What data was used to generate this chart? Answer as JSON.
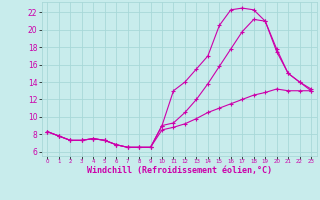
{
  "background_color": "#c8ecec",
  "grid_color": "#a8d8d8",
  "line_color": "#cc00aa",
  "marker_color": "#cc00aa",
  "xlabel": "Windchill (Refroidissement éolien,°C)",
  "xlabel_fontsize": 6,
  "ylabel_ticks": [
    6,
    8,
    10,
    12,
    14,
    16,
    18,
    20,
    22
  ],
  "xticks": [
    0,
    1,
    2,
    3,
    4,
    5,
    6,
    7,
    8,
    9,
    10,
    11,
    12,
    13,
    14,
    15,
    16,
    17,
    18,
    19,
    20,
    21,
    22,
    23
  ],
  "xlim": [
    -0.5,
    23.5
  ],
  "ylim": [
    5.5,
    23.2
  ],
  "curve1_x": [
    0,
    1,
    2,
    3,
    4,
    5,
    6,
    7,
    8,
    9,
    10,
    11,
    12,
    13,
    14,
    15,
    16,
    17,
    18,
    19,
    20,
    21,
    22,
    23
  ],
  "curve1_y": [
    8.3,
    7.8,
    7.3,
    7.3,
    7.5,
    7.3,
    6.8,
    6.5,
    6.5,
    6.5,
    9.0,
    13.0,
    14.0,
    15.5,
    17.0,
    20.5,
    22.3,
    22.5,
    22.3,
    21.0,
    17.5,
    15.0,
    14.0,
    13.0
  ],
  "curve2_x": [
    0,
    1,
    2,
    3,
    4,
    5,
    6,
    7,
    8,
    9,
    10,
    11,
    12,
    13,
    14,
    15,
    16,
    17,
    18,
    19,
    20,
    21,
    22,
    23
  ],
  "curve2_y": [
    8.3,
    7.8,
    7.3,
    7.3,
    7.5,
    7.3,
    6.8,
    6.5,
    6.5,
    6.5,
    9.0,
    9.3,
    10.5,
    12.0,
    13.8,
    15.8,
    17.8,
    19.8,
    21.2,
    21.0,
    17.8,
    15.0,
    14.0,
    13.2
  ],
  "curve3_x": [
    0,
    1,
    2,
    3,
    4,
    5,
    6,
    7,
    8,
    9,
    10,
    11,
    12,
    13,
    14,
    15,
    16,
    17,
    18,
    19,
    20,
    21,
    22,
    23
  ],
  "curve3_y": [
    8.3,
    7.8,
    7.3,
    7.3,
    7.5,
    7.3,
    6.8,
    6.5,
    6.5,
    6.5,
    8.5,
    8.8,
    9.2,
    9.8,
    10.5,
    11.0,
    11.5,
    12.0,
    12.5,
    12.8,
    13.2,
    13.0,
    13.0,
    13.0
  ]
}
